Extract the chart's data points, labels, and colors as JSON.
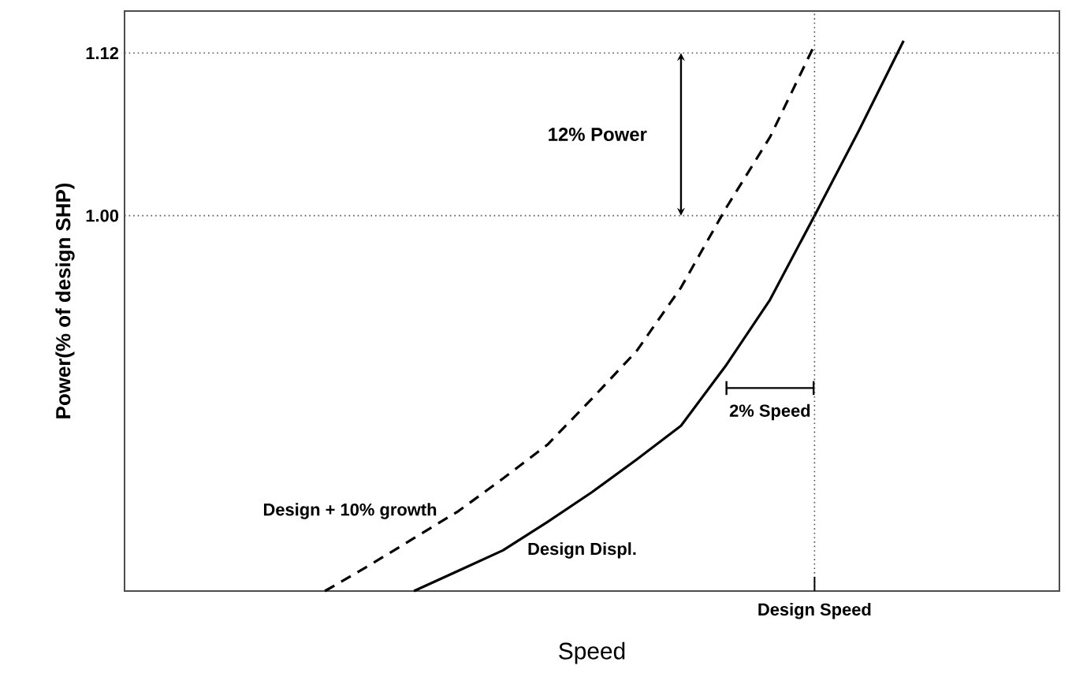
{
  "chart_data": {
    "type": "line",
    "xlabel": "Speed",
    "ylabel": "Power(% of design SHP)",
    "categories": [
      null,
      null,
      null,
      null,
      null,
      null,
      null,
      null,
      null,
      null,
      null,
      null,
      null,
      null,
      null,
      null,
      null,
      null,
      null,
      null,
      null
    ],
    "ylim": [
      0.723,
      1.151
    ],
    "yticks": [
      {
        "value": 1.0,
        "label": "1.00"
      },
      {
        "value": 1.12,
        "label": "1.12"
      }
    ],
    "marker": "none",
    "series": [
      {
        "name": "Design + 10% growth",
        "color": "#000000",
        "line_style": "dashed",
        "values": [
          null,
          null,
          null,
          null,
          0.723,
          0.742,
          0.762,
          0.782,
          0.806,
          0.831,
          0.865,
          0.9,
          0.947,
          1.005,
          1.058,
          1.126,
          null,
          null,
          null,
          null,
          null
        ]
      },
      {
        "name": "Design Displ.",
        "color": "#000000",
        "line_style": "solid",
        "values": [
          null,
          null,
          null,
          null,
          null,
          null,
          0.723,
          0.738,
          0.753,
          0.774,
          0.796,
          0.82,
          0.845,
          0.889,
          0.938,
          1.0,
          1.063,
          1.129,
          null,
          null,
          null
        ]
      }
    ],
    "ref_lines": [
      {
        "axis": "y",
        "value": 1.0,
        "color": "#555555",
        "line_style": "dotted"
      },
      {
        "axis": "y",
        "value": 1.12,
        "color": "#555555",
        "line_style": "dotted"
      }
    ],
    "annotations": [
      "12% Power",
      "2% Speed",
      "Design  Speed"
    ]
  }
}
